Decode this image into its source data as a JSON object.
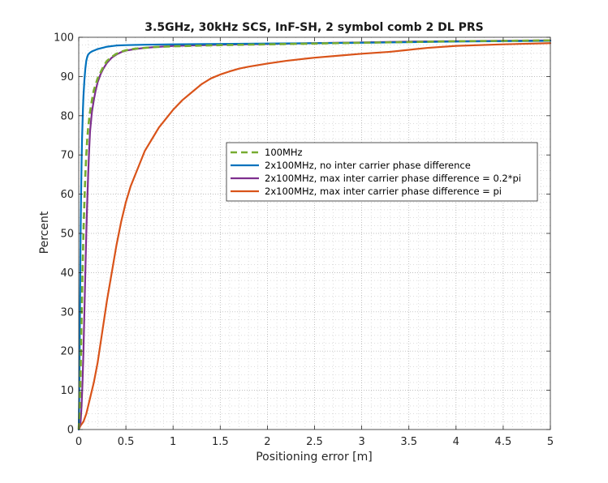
{
  "chart_data": {
    "type": "line",
    "title": "3.5GHz, 30kHz SCS, InF-SH, 2 symbol comb 2 DL PRS",
    "xlabel": "Positioning error [m]",
    "ylabel": "Percent",
    "xlim": [
      0,
      5
    ],
    "ylim": [
      0,
      100
    ],
    "xticks": [
      "0",
      "0.5",
      "1",
      "1.5",
      "2",
      "2.5",
      "3",
      "3.5",
      "4",
      "4.5",
      "5"
    ],
    "yticks": [
      "0",
      "10",
      "20",
      "30",
      "40",
      "50",
      "60",
      "70",
      "80",
      "90",
      "100"
    ],
    "grid": "dotted, major and minor",
    "legend_position": "center-right",
    "series": [
      {
        "name": "100MHz",
        "color": "#77AC30",
        "style": "dashed",
        "x": [
          0,
          0.01,
          0.02,
          0.03,
          0.04,
          0.05,
          0.06,
          0.07,
          0.08,
          0.09,
          0.1,
          0.12,
          0.14,
          0.16,
          0.18,
          0.2,
          0.23,
          0.26,
          0.3,
          0.35,
          0.4,
          0.45,
          0.5,
          0.6,
          0.7,
          0.8,
          1.0,
          1.5,
          2.0,
          2.5,
          3.0,
          3.5,
          4.0,
          4.5,
          5.0
        ],
        "y": [
          0,
          5,
          15,
          28,
          40,
          50,
          58,
          65,
          70,
          74,
          77,
          81,
          84,
          86.5,
          88,
          89.5,
          91,
          92.5,
          94,
          95,
          95.8,
          96.3,
          96.7,
          97.1,
          97.3,
          97.5,
          97.7,
          98.0,
          98.2,
          98.4,
          98.6,
          98.8,
          99.0,
          99.1,
          99.2
        ]
      },
      {
        "name": "2x100MHz, no inter carrier phase difference",
        "color": "#0072BD",
        "style": "solid",
        "x": [
          0,
          0.005,
          0.01,
          0.015,
          0.02,
          0.025,
          0.03,
          0.035,
          0.04,
          0.045,
          0.05,
          0.06,
          0.07,
          0.08,
          0.09,
          0.1,
          0.12,
          0.14,
          0.17,
          0.2,
          0.25,
          0.3,
          0.4,
          0.5,
          0.7,
          1.0,
          1.5,
          2.0,
          3.0,
          4.0,
          5.0
        ],
        "y": [
          0,
          8,
          20,
          35,
          50,
          60,
          68,
          74,
          78,
          82,
          85,
          89,
          92,
          94,
          95,
          95.6,
          96.1,
          96.4,
          96.7,
          97.0,
          97.3,
          97.6,
          97.9,
          98.0,
          98.1,
          98.2,
          98.3,
          98.4,
          98.6,
          98.9,
          99.1
        ]
      },
      {
        "name": "2x100MHz, max inter carrier phase difference = 0.2*pi",
        "color": "#7E2F8E",
        "style": "solid",
        "x": [
          0,
          0.02,
          0.03,
          0.04,
          0.05,
          0.06,
          0.07,
          0.08,
          0.09,
          0.1,
          0.11,
          0.12,
          0.14,
          0.16,
          0.18,
          0.2,
          0.23,
          0.26,
          0.3,
          0.35,
          0.4,
          0.45,
          0.5,
          0.6,
          0.7,
          0.8,
          1.0,
          1.5,
          2.0,
          2.5,
          3.0,
          3.5,
          4.0,
          4.5,
          5.0
        ],
        "y": [
          0,
          2,
          6,
          12,
          20,
          30,
          40,
          50,
          58,
          65,
          71,
          76,
          81,
          84,
          86.5,
          88.5,
          90.5,
          92,
          93.5,
          94.8,
          95.6,
          96.2,
          96.6,
          97.0,
          97.3,
          97.5,
          97.8,
          98.1,
          98.3,
          98.5,
          98.7,
          98.9,
          99.0,
          99.1,
          99.2
        ]
      },
      {
        "name": "2x100MHz, max inter carrier phase difference = pi",
        "color": "#D95319",
        "style": "solid",
        "x": [
          0,
          0.02,
          0.05,
          0.08,
          0.1,
          0.13,
          0.16,
          0.2,
          0.25,
          0.3,
          0.35,
          0.4,
          0.45,
          0.5,
          0.55,
          0.6,
          0.65,
          0.7,
          0.75,
          0.8,
          0.85,
          0.9,
          0.95,
          1.0,
          1.1,
          1.2,
          1.3,
          1.4,
          1.5,
          1.6,
          1.7,
          1.8,
          2.0,
          2.2,
          2.5,
          2.8,
          3.0,
          3.3,
          3.5,
          3.7,
          4.0,
          4.5,
          5.0
        ],
        "y": [
          0,
          1,
          2,
          4,
          6,
          9,
          12,
          17,
          25,
          33,
          40,
          47,
          53,
          58,
          62,
          65,
          68,
          71,
          73,
          75,
          77,
          78.5,
          80,
          81.5,
          84,
          86,
          88,
          89.5,
          90.5,
          91.3,
          92,
          92.5,
          93.3,
          94,
          94.8,
          95.4,
          95.8,
          96.3,
          96.8,
          97.3,
          97.8,
          98.2,
          98.5
        ]
      }
    ]
  }
}
